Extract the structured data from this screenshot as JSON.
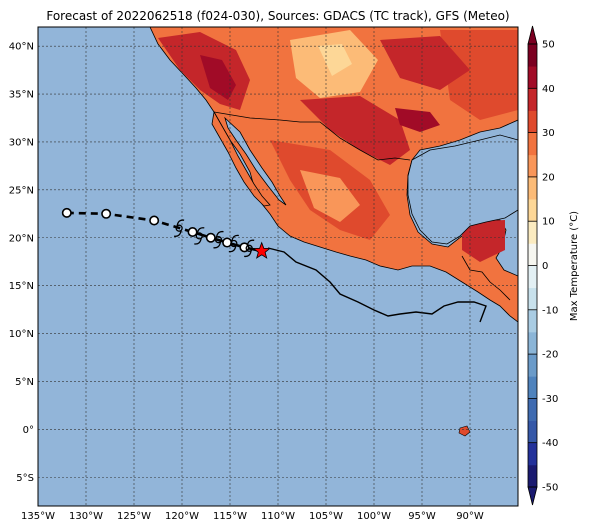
{
  "title": "Forecast of 2022062518 (f024-030), Sources: GDACS (TC track), GFS (Meteo)",
  "map": {
    "lon_range": [
      -135,
      -85
    ],
    "lat_range": [
      -8,
      42
    ],
    "lon_ticks": [
      {
        "lon": -135,
        "label": "135°W"
      },
      {
        "lon": -130,
        "label": "130°W"
      },
      {
        "lon": -125,
        "label": "125°W"
      },
      {
        "lon": -120,
        "label": "120°W"
      },
      {
        "lon": -115,
        "label": "115°W"
      },
      {
        "lon": -110,
        "label": "110°W"
      },
      {
        "lon": -105,
        "label": "105°W"
      },
      {
        "lon": -100,
        "label": "100°W"
      },
      {
        "lon": -95,
        "label": "95°W"
      },
      {
        "lon": -90,
        "label": "90°W"
      }
    ],
    "lat_ticks": [
      {
        "lat": 40,
        "label": "40°N"
      },
      {
        "lat": 35,
        "label": "35°N"
      },
      {
        "lat": 30,
        "label": "30°N"
      },
      {
        "lat": 25,
        "label": "25°N"
      },
      {
        "lat": 20,
        "label": "20°N"
      },
      {
        "lat": 15,
        "label": "15°N"
      },
      {
        "lat": 10,
        "label": "10°N"
      },
      {
        "lat": 5,
        "label": "5°N"
      },
      {
        "lat": 0,
        "label": "0°"
      },
      {
        "lat": -5,
        "label": "5°S"
      }
    ],
    "ocean_color": "#92b5d9",
    "grid": true
  },
  "track": {
    "past_points": [
      [
        -132.0,
        22.6
      ],
      [
        -127.9,
        22.5
      ],
      [
        -122.9,
        21.8
      ]
    ],
    "forecast_points": [
      [
        -118.9,
        20.6
      ],
      [
        -117.0,
        20.0
      ],
      [
        -115.3,
        19.5
      ],
      [
        -113.5,
        19.0
      ]
    ],
    "cyclone_symbols": [
      [
        -120.3,
        21.0
      ],
      [
        -118.2,
        20.2
      ],
      [
        -116.2,
        19.8
      ],
      [
        -114.6,
        19.4
      ],
      [
        -113.0,
        18.9
      ]
    ],
    "current_position": [
      -111.7,
      18.6
    ],
    "marker_color": "#ff0000"
  },
  "colorbar": {
    "label": "Max Temperature (°C)",
    "min": -50,
    "max": 50,
    "ticks": [
      50,
      40,
      30,
      20,
      10,
      0,
      -10,
      -20,
      -30,
      -40,
      -50
    ],
    "colors": [
      {
        "from": -50,
        "to": -45,
        "color": "#1a1a70"
      },
      {
        "from": -45,
        "to": -40,
        "color": "#23319a"
      },
      {
        "from": -40,
        "to": -35,
        "color": "#3558a8"
      },
      {
        "from": -35,
        "to": -30,
        "color": "#3f6bb1"
      },
      {
        "from": -30,
        "to": -25,
        "color": "#4f83bd"
      },
      {
        "from": -25,
        "to": -20,
        "color": "#6b9bc9"
      },
      {
        "from": -20,
        "to": -15,
        "color": "#8bb5d7"
      },
      {
        "from": -15,
        "to": -10,
        "color": "#a9cce3"
      },
      {
        "from": -10,
        "to": -5,
        "color": "#c8e1ec"
      },
      {
        "from": -5,
        "to": 0,
        "color": "#e3f0f4"
      },
      {
        "from": 0,
        "to": 5,
        "color": "#f6f6f0"
      },
      {
        "from": 5,
        "to": 10,
        "color": "#fbebc0"
      },
      {
        "from": 10,
        "to": 15,
        "color": "#fdd797"
      },
      {
        "from": 15,
        "to": 20,
        "color": "#fcbb77"
      },
      {
        "from": 20,
        "to": 25,
        "color": "#f99659"
      },
      {
        "from": 25,
        "to": 30,
        "color": "#f1733f"
      },
      {
        "from": 30,
        "to": 35,
        "color": "#df4a2d"
      },
      {
        "from": 35,
        "to": 40,
        "color": "#c4262a"
      },
      {
        "from": 40,
        "to": 45,
        "color": "#a10b27"
      },
      {
        "from": 45,
        "to": 50,
        "color": "#7b0021"
      }
    ]
  }
}
